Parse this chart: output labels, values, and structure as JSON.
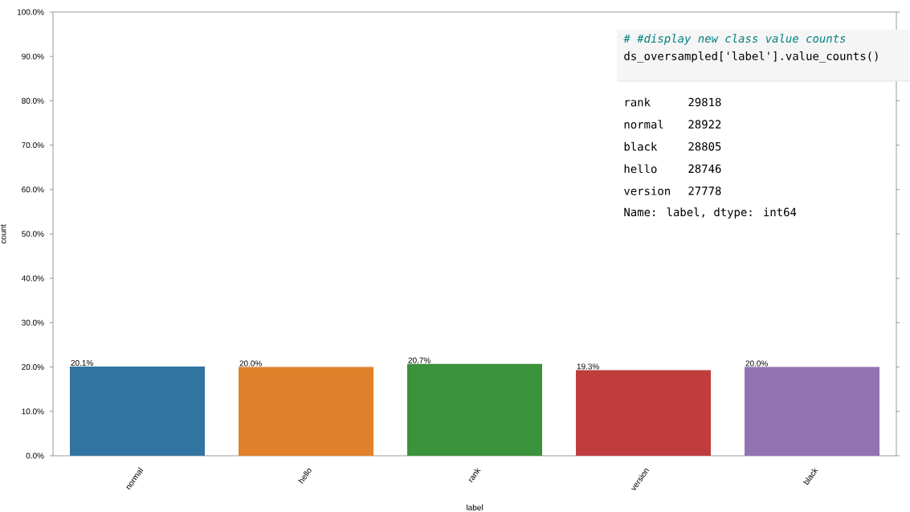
{
  "chart_data": {
    "type": "bar",
    "xlabel": "label",
    "ylabel": "count",
    "categories": [
      "normal",
      "hello",
      "rank",
      "version",
      "black"
    ],
    "values": [
      20.1,
      20.0,
      20.7,
      19.3,
      20.0
    ],
    "colors": [
      "#3274a1",
      "#e1812c",
      "#3a923a",
      "#c03d3e",
      "#9372b2"
    ],
    "value_labels": [
      "20.1%",
      "20.0%",
      "20.7%",
      "19.3%",
      "20.0%"
    ],
    "ylim": [
      0,
      100
    ],
    "yticks": [
      {
        "value": 0,
        "label": "0.0%"
      },
      {
        "value": 10,
        "label": "10.0%"
      },
      {
        "value": 20,
        "label": "20.0%"
      },
      {
        "value": 30,
        "label": "30.0%"
      },
      {
        "value": 40,
        "label": "40.0%"
      },
      {
        "value": 50,
        "label": "50.0%"
      },
      {
        "value": 60,
        "label": "60.0%"
      },
      {
        "value": 70,
        "label": "70.0%"
      },
      {
        "value": 80,
        "label": "80.0%"
      },
      {
        "value": 90,
        "label": "90.0%"
      },
      {
        "value": 100,
        "label": "100.0%"
      }
    ],
    "annotations": [
      "# #display new class value counts",
      "ds_oversampled['label'].value_counts()",
      "rank",
      "29818",
      "normal",
      "28922",
      "black",
      "28805",
      "hello",
      "28746",
      "version",
      "27778",
      "Name: label, dtype: int64"
    ]
  }
}
